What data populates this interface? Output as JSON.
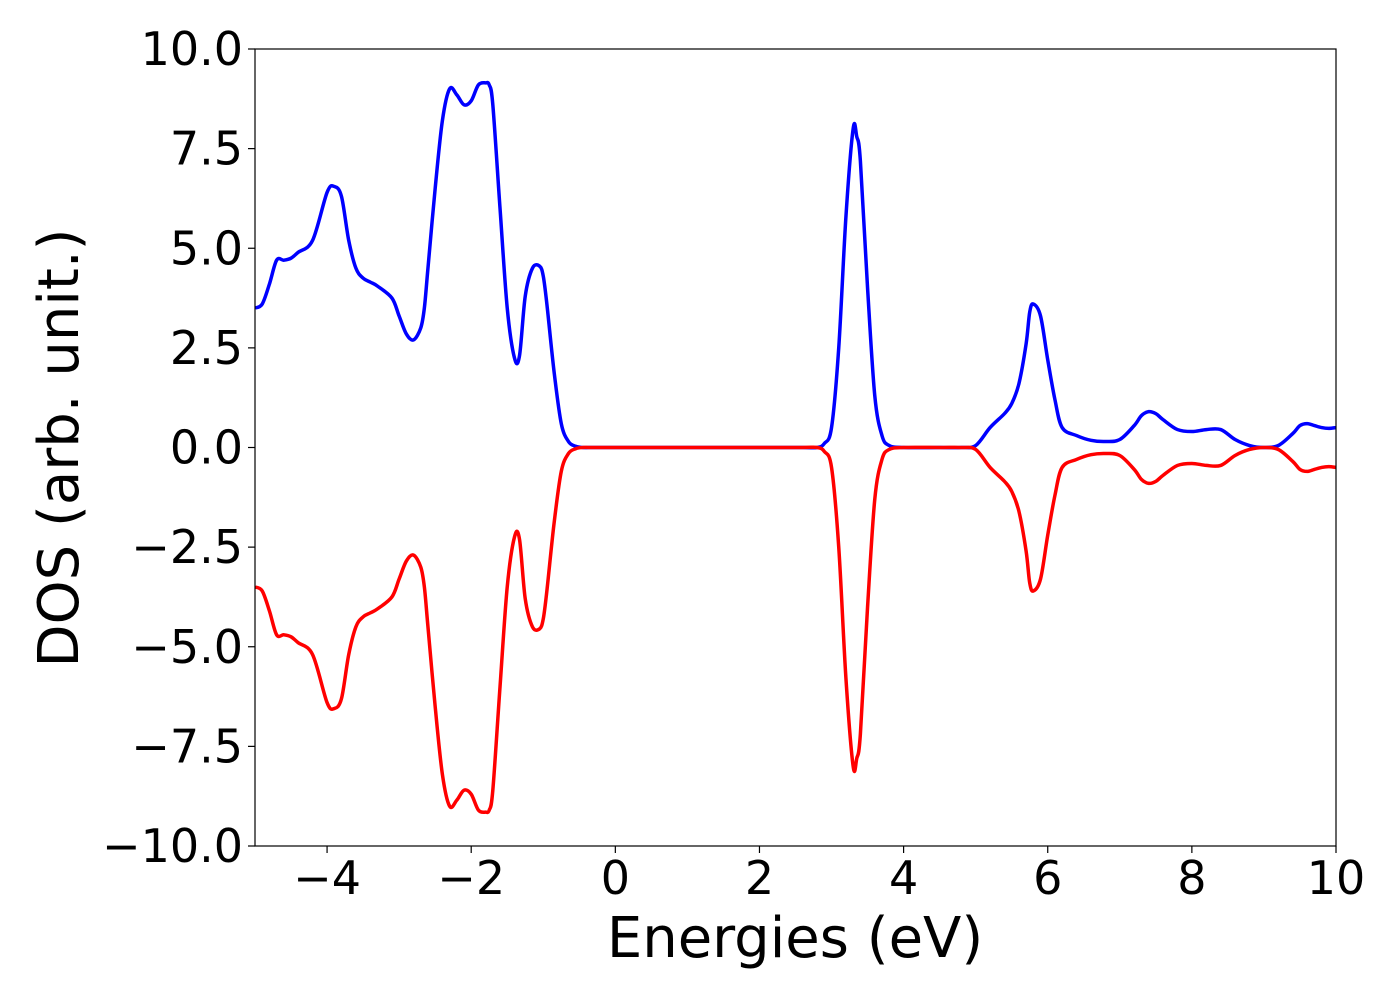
{
  "chart_data": {
    "type": "line",
    "title": "",
    "xlabel": "Energies (eV)",
    "ylabel": "DOS (arb. unit.)",
    "xlim": [
      -5,
      10
    ],
    "ylim": [
      -10,
      10
    ],
    "xticks": [
      -4,
      -2,
      0,
      2,
      4,
      6,
      8,
      10
    ],
    "xtick_labels": [
      "−4",
      "−2",
      "0",
      "2",
      "4",
      "6",
      "8",
      "10"
    ],
    "yticks": [
      -10,
      -7.5,
      -5,
      -2.5,
      0,
      2.5,
      5,
      7.5,
      10
    ],
    "ytick_labels": [
      "−10.0",
      "−7.5",
      "−5.0",
      "−2.5",
      "0.0",
      "2.5",
      "5.0",
      "7.5",
      "10.0"
    ],
    "grid": false,
    "legend": "none",
    "series": [
      {
        "color": "#0000ff",
        "x": [
          -5.0,
          -4.9,
          -4.8,
          -4.7,
          -4.6,
          -4.5,
          -4.4,
          -4.2,
          -4.0,
          -3.9,
          -3.8,
          -3.7,
          -3.6,
          -3.5,
          -3.4,
          -3.3,
          -3.1,
          -3.0,
          -2.9,
          -2.8,
          -2.7,
          -2.65,
          -2.6,
          -2.5,
          -2.4,
          -2.3,
          -2.2,
          -2.1,
          -2.0,
          -1.9,
          -1.8,
          -1.75,
          -1.7,
          -1.6,
          -1.5,
          -1.4,
          -1.33,
          -1.25,
          -1.15,
          -1.05,
          -1.0,
          -0.95,
          -0.85,
          -0.75,
          -0.65,
          -0.55,
          -0.45,
          -0.3,
          0.0,
          1.0,
          2.0,
          2.6,
          2.8,
          2.9,
          3.0,
          3.1,
          3.2,
          3.3,
          3.35,
          3.4,
          3.5,
          3.6,
          3.7,
          3.8,
          4.0,
          4.5,
          4.8,
          5.0,
          5.2,
          5.4,
          5.5,
          5.6,
          5.7,
          5.75,
          5.8,
          5.9,
          6.0,
          6.1,
          6.2,
          6.4,
          6.6,
          6.8,
          7.0,
          7.2,
          7.3,
          7.4,
          7.5,
          7.6,
          7.8,
          8.0,
          8.2,
          8.4,
          8.6,
          8.8,
          9.0,
          9.2,
          9.4,
          9.5,
          9.6,
          9.7,
          9.8,
          9.9,
          10.0
        ],
        "y": [
          3.5,
          3.6,
          4.1,
          4.7,
          4.7,
          4.75,
          4.9,
          5.2,
          6.4,
          6.55,
          6.3,
          5.2,
          4.5,
          4.25,
          4.15,
          4.05,
          3.75,
          3.3,
          2.85,
          2.7,
          3.0,
          3.5,
          4.5,
          6.5,
          8.2,
          9.0,
          8.85,
          8.6,
          8.7,
          9.1,
          9.15,
          9.1,
          8.6,
          6.0,
          3.5,
          2.25,
          2.3,
          3.8,
          4.5,
          4.55,
          4.3,
          3.6,
          1.9,
          0.6,
          0.15,
          0.03,
          0.0,
          0.0,
          0.0,
          0.0,
          0.0,
          0.0,
          0.0,
          0.1,
          0.5,
          2.5,
          5.8,
          8.0,
          7.8,
          7.2,
          4.0,
          1.3,
          0.3,
          0.05,
          0.0,
          0.0,
          0.0,
          0.05,
          0.5,
          0.85,
          1.1,
          1.6,
          2.6,
          3.4,
          3.6,
          3.3,
          2.2,
          1.2,
          0.5,
          0.3,
          0.18,
          0.15,
          0.2,
          0.55,
          0.8,
          0.9,
          0.85,
          0.7,
          0.45,
          0.4,
          0.45,
          0.45,
          0.2,
          0.05,
          0.0,
          0.05,
          0.35,
          0.55,
          0.6,
          0.55,
          0.5,
          0.48,
          0.5
        ]
      },
      {
        "color": "#ff0000",
        "x": [
          -5.0,
          -4.9,
          -4.8,
          -4.7,
          -4.6,
          -4.5,
          -4.4,
          -4.2,
          -4.0,
          -3.9,
          -3.8,
          -3.7,
          -3.6,
          -3.5,
          -3.4,
          -3.3,
          -3.1,
          -3.0,
          -2.9,
          -2.8,
          -2.7,
          -2.65,
          -2.6,
          -2.5,
          -2.4,
          -2.3,
          -2.2,
          -2.1,
          -2.0,
          -1.9,
          -1.8,
          -1.75,
          -1.7,
          -1.6,
          -1.5,
          -1.4,
          -1.33,
          -1.25,
          -1.15,
          -1.05,
          -1.0,
          -0.95,
          -0.85,
          -0.75,
          -0.65,
          -0.55,
          -0.45,
          -0.3,
          0.0,
          1.0,
          2.0,
          2.6,
          2.8,
          2.9,
          3.0,
          3.1,
          3.2,
          3.3,
          3.35,
          3.4,
          3.5,
          3.6,
          3.7,
          3.8,
          4.0,
          4.5,
          4.8,
          5.0,
          5.2,
          5.4,
          5.5,
          5.6,
          5.7,
          5.75,
          5.8,
          5.9,
          6.0,
          6.1,
          6.2,
          6.4,
          6.6,
          6.8,
          7.0,
          7.2,
          7.3,
          7.4,
          7.5,
          7.6,
          7.8,
          8.0,
          8.2,
          8.4,
          8.6,
          8.8,
          9.0,
          9.2,
          9.4,
          9.5,
          9.6,
          9.7,
          9.8,
          9.9,
          10.0
        ],
        "y": [
          -3.5,
          -3.6,
          -4.1,
          -4.7,
          -4.7,
          -4.75,
          -4.9,
          -5.2,
          -6.4,
          -6.55,
          -6.3,
          -5.2,
          -4.5,
          -4.25,
          -4.15,
          -4.05,
          -3.75,
          -3.3,
          -2.85,
          -2.7,
          -3.0,
          -3.5,
          -4.5,
          -6.5,
          -8.2,
          -9.0,
          -8.85,
          -8.6,
          -8.7,
          -9.1,
          -9.15,
          -9.1,
          -8.6,
          -6.0,
          -3.5,
          -2.25,
          -2.3,
          -3.8,
          -4.5,
          -4.55,
          -4.3,
          -3.6,
          -1.9,
          -0.6,
          -0.15,
          -0.03,
          0.0,
          0.0,
          0.0,
          0.0,
          0.0,
          0.0,
          0.0,
          -0.1,
          -0.5,
          -2.5,
          -5.8,
          -8.0,
          -7.8,
          -7.2,
          -4.0,
          -1.3,
          -0.3,
          -0.05,
          0.0,
          0.0,
          0.0,
          -0.05,
          -0.5,
          -0.85,
          -1.1,
          -1.6,
          -2.6,
          -3.4,
          -3.6,
          -3.3,
          -2.2,
          -1.2,
          -0.5,
          -0.3,
          -0.18,
          -0.15,
          -0.2,
          -0.55,
          -0.8,
          -0.9,
          -0.85,
          -0.7,
          -0.45,
          -0.4,
          -0.45,
          -0.45,
          -0.2,
          -0.05,
          0.0,
          -0.05,
          -0.35,
          -0.55,
          -0.6,
          -0.55,
          -0.5,
          -0.48,
          -0.5
        ]
      }
    ]
  }
}
